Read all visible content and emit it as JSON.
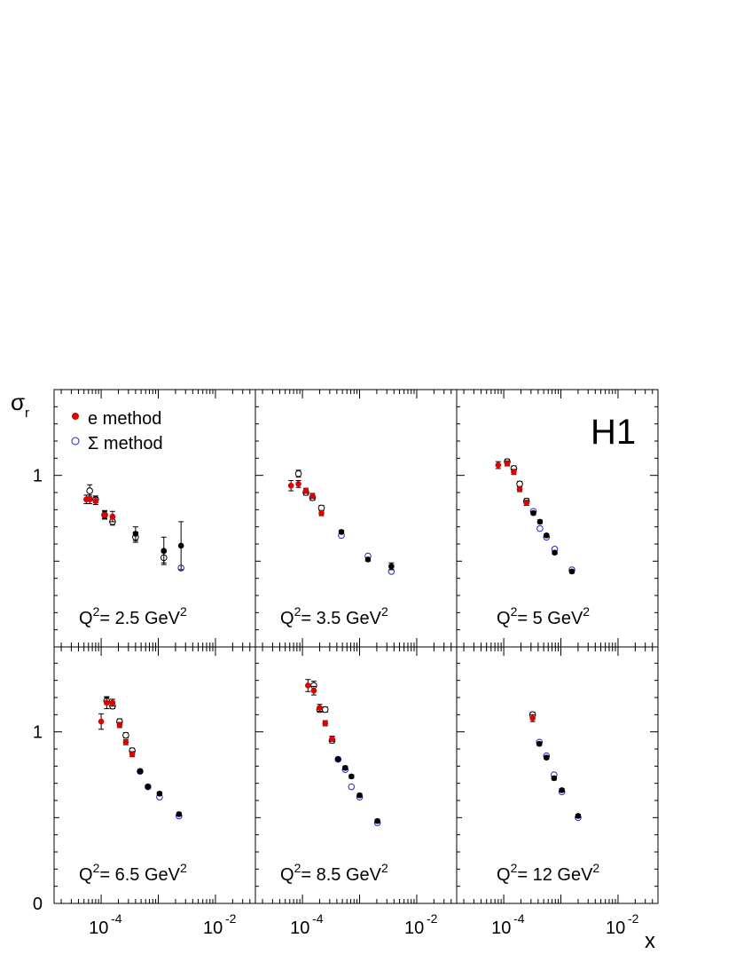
{
  "figure": {
    "ylabel": "σ",
    "ylabel_sub": "r",
    "xlabel": "x",
    "logo": "H1",
    "legend": {
      "placement": "top-left",
      "entries": [
        {
          "label": "e method",
          "marker": "filled-circle",
          "color": "#e00000"
        },
        {
          "label": "Σ method",
          "marker": "open-circle",
          "color": "#2222cc"
        }
      ]
    },
    "colors": {
      "e_method": "#e00000",
      "sigma_method_open": "#2222cc",
      "other": "#000000"
    }
  },
  "chart_data": {
    "type": "scatter",
    "xscale": "log",
    "xlim": [
      1.5e-05,
      0.05
    ],
    "ylim": [
      0,
      1.5
    ],
    "yticks": [
      "0",
      "1"
    ],
    "xticks": [
      {
        "base": "10",
        "exp": "-4"
      },
      {
        "base": "10",
        "exp": "-2"
      }
    ],
    "panels": [
      {
        "Q2_label": {
          "pre": "Q",
          "sup1": "2",
          "mid": "= 2.5 GeV",
          "sup2": "2"
        },
        "series": [
          {
            "name": "e method",
            "marker": "filled",
            "color": "#e00000",
            "points": [
              {
                "x": 5.5e-05,
                "y": 0.86,
                "err": 0.025
              },
              {
                "x": 6.3e-05,
                "y": 0.86,
                "err": 0.025
              },
              {
                "x": 8e-05,
                "y": 0.85,
                "err": 0.02
              },
              {
                "x": 0.000115,
                "y": 0.77,
                "err": 0.025
              },
              {
                "x": 0.000158,
                "y": 0.76,
                "err": 0.03
              }
            ]
          },
          {
            "name": "Σ method",
            "marker": "open",
            "color": "#000000",
            "points": [
              {
                "x": 6.3e-05,
                "y": 0.91,
                "err": 0.035
              },
              {
                "x": 8e-05,
                "y": 0.86,
                "err": 0.02
              },
              {
                "x": 0.000115,
                "y": 0.77,
                "err": 0.02
              },
              {
                "x": 0.000158,
                "y": 0.73,
                "err": 0.02
              },
              {
                "x": 0.0004,
                "y": 0.64,
                "err": 0.03
              },
              {
                "x": 0.00125,
                "y": 0.52,
                "err": 0.03
              }
            ]
          },
          {
            "marker": "open",
            "color": "#2222cc",
            "points": [
              {
                "x": 0.0025,
                "y": 0.46,
                "err": 0
              }
            ]
          },
          {
            "marker": "filled",
            "color": "#000000",
            "points": [
              {
                "x": 0.0004,
                "y": 0.66,
                "err": 0.04
              },
              {
                "x": 0.00125,
                "y": 0.56,
                "err": 0.08
              },
              {
                "x": 0.0025,
                "y": 0.59,
                "err": 0.14
              }
            ]
          }
        ]
      },
      {
        "Q2_label": {
          "pre": "Q",
          "sup1": "2",
          "mid": "= 3.5 GeV",
          "sup2": "2"
        },
        "series": [
          {
            "name": "e method",
            "marker": "filled",
            "color": "#e00000",
            "points": [
              {
                "x": 6.3e-05,
                "y": 0.94,
                "err": 0.03
              },
              {
                "x": 8.5e-05,
                "y": 0.95,
                "err": 0.02
              },
              {
                "x": 0.000115,
                "y": 0.91,
                "err": 0.015
              },
              {
                "x": 0.00015,
                "y": 0.88,
                "err": 0.015
              },
              {
                "x": 0.000215,
                "y": 0.78,
                "err": 0.015
              }
            ]
          },
          {
            "name": "Σ method",
            "marker": "open",
            "color": "#000000",
            "points": [
              {
                "x": 8.5e-05,
                "y": 1.01,
                "err": 0.02
              },
              {
                "x": 0.000115,
                "y": 0.9,
                "err": 0.015
              },
              {
                "x": 0.00015,
                "y": 0.87,
                "err": 0.015
              },
              {
                "x": 0.000215,
                "y": 0.81,
                "err": 0.015
              }
            ]
          },
          {
            "marker": "open",
            "color": "#2222cc",
            "points": [
              {
                "x": 0.00048,
                "y": 0.65,
                "err": 0
              },
              {
                "x": 0.0014,
                "y": 0.53,
                "err": 0
              },
              {
                "x": 0.0036,
                "y": 0.44,
                "err": 0
              }
            ]
          },
          {
            "marker": "filled",
            "color": "#000000",
            "points": [
              {
                "x": 0.00048,
                "y": 0.67,
                "err": 0.01
              },
              {
                "x": 0.0014,
                "y": 0.51,
                "err": 0.01
              },
              {
                "x": 0.0036,
                "y": 0.47,
                "err": 0.02
              }
            ]
          }
        ]
      },
      {
        "Q2_label": {
          "pre": "Q",
          "sup1": "2",
          "mid": "= 5 GeV",
          "sup2": "2"
        },
        "series": [
          {
            "name": "e method",
            "marker": "filled",
            "color": "#e00000",
            "points": [
              {
                "x": 8e-05,
                "y": 1.06,
                "err": 0.02
              },
              {
                "x": 0.000115,
                "y": 1.07,
                "err": 0.015
              },
              {
                "x": 0.00015,
                "y": 1.02,
                "err": 0.015
              },
              {
                "x": 0.00019,
                "y": 0.92,
                "err": 0.015
              },
              {
                "x": 0.00025,
                "y": 0.84,
                "err": 0.015
              }
            ]
          },
          {
            "name": "Σ method",
            "marker": "open",
            "color": "#000000",
            "points": [
              {
                "x": 0.000115,
                "y": 1.08,
                "err": 0.015
              },
              {
                "x": 0.00015,
                "y": 1.04,
                "err": 0.015
              },
              {
                "x": 0.00019,
                "y": 0.95,
                "err": 0.015
              },
              {
                "x": 0.00025,
                "y": 0.85,
                "err": 0.015
              }
            ]
          },
          {
            "marker": "open",
            "color": "#2222cc",
            "points": [
              {
                "x": 0.00033,
                "y": 0.79,
                "err": 0
              },
              {
                "x": 0.00043,
                "y": 0.69,
                "err": 0
              },
              {
                "x": 0.00056,
                "y": 0.64,
                "err": 0
              },
              {
                "x": 0.00078,
                "y": 0.57,
                "err": 0
              },
              {
                "x": 0.00156,
                "y": 0.45,
                "err": 0
              }
            ]
          },
          {
            "marker": "filled",
            "color": "#000000",
            "points": [
              {
                "x": 0.00033,
                "y": 0.78,
                "err": 0.01
              },
              {
                "x": 0.00043,
                "y": 0.73,
                "err": 0.01
              },
              {
                "x": 0.00056,
                "y": 0.65,
                "err": 0.01
              },
              {
                "x": 0.00078,
                "y": 0.55,
                "err": 0.01
              },
              {
                "x": 0.00156,
                "y": 0.44,
                "err": 0.01
              }
            ]
          }
        ]
      },
      {
        "Q2_label": {
          "pre": "Q",
          "sup1": "2",
          "mid": "= 6.5 GeV",
          "sup2": "2"
        },
        "series": [
          {
            "name": "e method",
            "marker": "filled",
            "color": "#e00000",
            "points": [
              {
                "x": 0.0001,
                "y": 1.06,
                "err": 0.045
              },
              {
                "x": 0.000125,
                "y": 1.17,
                "err": 0.035
              },
              {
                "x": 0.000158,
                "y": 1.17,
                "err": 0.02
              },
              {
                "x": 0.00021,
                "y": 1.04,
                "err": 0.015
              },
              {
                "x": 0.00027,
                "y": 0.94,
                "err": 0.015
              },
              {
                "x": 0.00035,
                "y": 0.87,
                "err": 0.015
              }
            ]
          },
          {
            "name": "Σ method",
            "marker": "open",
            "color": "#000000",
            "points": [
              {
                "x": 0.000125,
                "y": 1.18,
                "err": 0.02
              },
              {
                "x": 0.000158,
                "y": 1.15,
                "err": 0.015
              },
              {
                "x": 0.00021,
                "y": 1.06,
                "err": 0.015
              },
              {
                "x": 0.00027,
                "y": 0.98,
                "err": 0.015
              },
              {
                "x": 0.00035,
                "y": 0.89,
                "err": 0.015
              }
            ]
          },
          {
            "marker": "open",
            "color": "#2222cc",
            "points": [
              {
                "x": 0.00048,
                "y": 0.77,
                "err": 0
              },
              {
                "x": 0.00066,
                "y": 0.68,
                "err": 0
              },
              {
                "x": 0.00105,
                "y": 0.62,
                "err": 0
              },
              {
                "x": 0.0023,
                "y": 0.51,
                "err": 0
              }
            ]
          },
          {
            "marker": "filled",
            "color": "#000000",
            "points": [
              {
                "x": 0.00048,
                "y": 0.77,
                "err": 0.01
              },
              {
                "x": 0.00066,
                "y": 0.68,
                "err": 0.01
              },
              {
                "x": 0.00105,
                "y": 0.64,
                "err": 0.01
              },
              {
                "x": 0.0023,
                "y": 0.52,
                "err": 0.01
              }
            ]
          }
        ]
      },
      {
        "Q2_label": {
          "pre": "Q",
          "sup1": "2",
          "mid": "= 8.5 GeV",
          "sup2": "2"
        },
        "series": [
          {
            "name": "e method",
            "marker": "filled",
            "color": "#e00000",
            "points": [
              {
                "x": 0.000125,
                "y": 1.27,
                "err": 0.035
              },
              {
                "x": 0.000158,
                "y": 1.24,
                "err": 0.025
              },
              {
                "x": 0.0002,
                "y": 1.14,
                "err": 0.02
              },
              {
                "x": 0.00025,
                "y": 1.05,
                "err": 0.015
              },
              {
                "x": 0.00033,
                "y": 0.96,
                "err": 0.015
              }
            ]
          },
          {
            "name": "Σ method",
            "marker": "open",
            "color": "#000000",
            "points": [
              {
                "x": 0.000158,
                "y": 1.27,
                "err": 0.025
              },
              {
                "x": 0.0002,
                "y": 1.13,
                "err": 0.015
              },
              {
                "x": 0.00025,
                "y": 1.13,
                "err": 0.015
              },
              {
                "x": 0.00033,
                "y": 0.95,
                "err": 0.015
              }
            ]
          },
          {
            "marker": "open",
            "color": "#2222cc",
            "points": [
              {
                "x": 0.00042,
                "y": 0.84,
                "err": 0
              },
              {
                "x": 0.00056,
                "y": 0.78,
                "err": 0
              },
              {
                "x": 0.00072,
                "y": 0.68,
                "err": 0
              },
              {
                "x": 0.001,
                "y": 0.62,
                "err": 0
              },
              {
                "x": 0.00205,
                "y": 0.47,
                "err": 0
              }
            ]
          },
          {
            "marker": "filled",
            "color": "#000000",
            "points": [
              {
                "x": 0.00042,
                "y": 0.84,
                "err": 0.01
              },
              {
                "x": 0.00056,
                "y": 0.79,
                "err": 0.01
              },
              {
                "x": 0.00072,
                "y": 0.74,
                "err": 0.01
              },
              {
                "x": 0.001,
                "y": 0.63,
                "err": 0.01
              },
              {
                "x": 0.00205,
                "y": 0.48,
                "err": 0.01
              }
            ]
          }
        ]
      },
      {
        "Q2_label": {
          "pre": "Q",
          "sup1": "2",
          "mid": "= 12 GeV",
          "sup2": "2"
        },
        "series": [
          {
            "name": "e method",
            "marker": "filled",
            "color": "#e00000",
            "points": [
              {
                "x": 0.00032,
                "y": 1.08,
                "err": 0.02
              }
            ]
          },
          {
            "name": "Σ method",
            "marker": "open",
            "color": "#000000",
            "points": [
              {
                "x": 0.00032,
                "y": 1.1,
                "err": 0.015
              }
            ]
          },
          {
            "marker": "open",
            "color": "#2222cc",
            "points": [
              {
                "x": 0.00042,
                "y": 0.94,
                "err": 0
              },
              {
                "x": 0.00056,
                "y": 0.86,
                "err": 0
              },
              {
                "x": 0.00076,
                "y": 0.75,
                "err": 0
              },
              {
                "x": 0.00104,
                "y": 0.65,
                "err": 0
              },
              {
                "x": 0.002,
                "y": 0.5,
                "err": 0
              }
            ]
          },
          {
            "marker": "filled",
            "color": "#000000",
            "points": [
              {
                "x": 0.00042,
                "y": 0.93,
                "err": 0.01
              },
              {
                "x": 0.00056,
                "y": 0.85,
                "err": 0.01
              },
              {
                "x": 0.00076,
                "y": 0.73,
                "err": 0.01
              },
              {
                "x": 0.00104,
                "y": 0.66,
                "err": 0.01
              },
              {
                "x": 0.002,
                "y": 0.51,
                "err": 0.01
              }
            ]
          }
        ]
      }
    ]
  }
}
